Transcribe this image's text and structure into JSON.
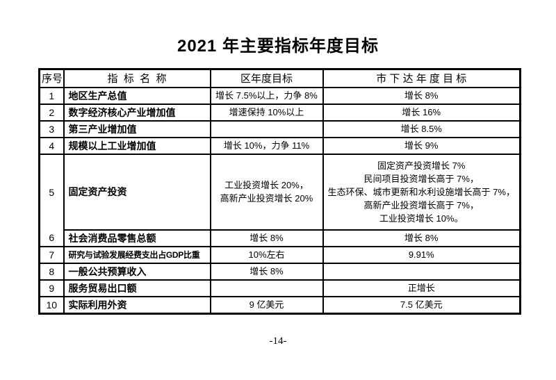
{
  "doc": {
    "title": "2021 年主要指标年度目标",
    "page_number": "-14-"
  },
  "colors": {
    "background": "#ffffff",
    "ink": "#000000",
    "border": "#000000"
  },
  "table": {
    "headers": {
      "no": "序号",
      "name": "指  标  名  称",
      "district": "区年度目标",
      "city": "市 下 达 年 度 目 标"
    },
    "rows": [
      {
        "no": "1",
        "name": "地区生产总值",
        "district": "增长 7.5%以上，力争 8%",
        "city": "增长 8%"
      },
      {
        "no": "2",
        "name": "数字经济核心产业增加值",
        "district": "增速保持 10%以上",
        "city": "增长 16%"
      },
      {
        "no": "3",
        "name": "第三产业增加值",
        "district": "",
        "city": "增长 8.5%"
      },
      {
        "no": "4",
        "name": "规模以上工业增加值",
        "district": "增长 10%，力争 11%",
        "city": "增长 9%"
      },
      {
        "no": "5",
        "name": "固定资产投资",
        "district": "工业投资增长 20%，\n高新产业投资增长 20%",
        "city": "固定资产投资增长 7%\n民间项目投资增长高于 7%，\n生态环保、城市更新和水利设施增长高于 7%，\n高新产业投资增长高于 7%，\n工业投资增长 10%。",
        "tall": true,
        "no_divider_below_no_cell": true
      },
      {
        "no": "6",
        "name": "社会消费品零售总额",
        "district": "增长 8%",
        "city": "增长 8%"
      },
      {
        "no": "7",
        "name": "研究与试验发展经费支出占GDP比重",
        "district": "10%左右",
        "city": "9.91%"
      },
      {
        "no": "8",
        "name": "一般公共预算收入",
        "district": "增长 8%",
        "city": ""
      },
      {
        "no": "9",
        "name": "服务贸易出口额",
        "district": "",
        "city": "正增长"
      },
      {
        "no": "10",
        "name": "实际利用外资",
        "district": "9 亿美元",
        "city": "7.5 亿美元"
      }
    ]
  }
}
